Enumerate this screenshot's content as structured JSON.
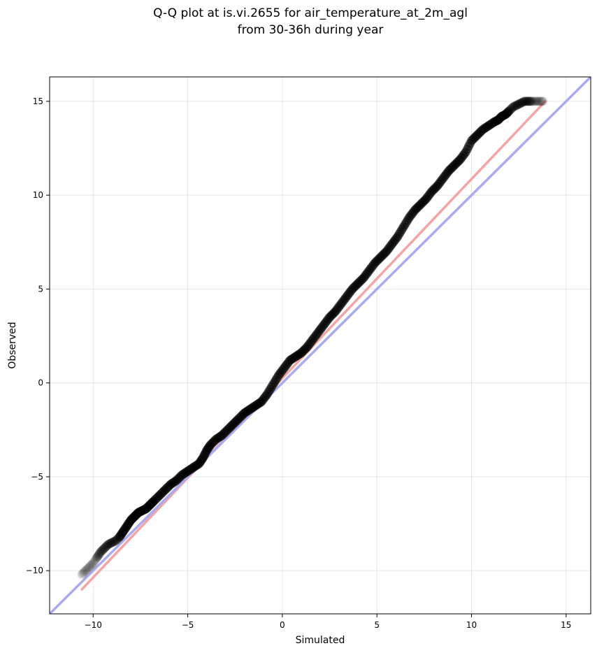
{
  "chart_data": {
    "type": "scatter",
    "title_lines": [
      "Q-Q plot at is.vi.2655 for air_temperature_at_2m_agl",
      "from 30-36h during year"
    ],
    "xlabel": "Simulated",
    "ylabel": "Observed",
    "xlim": [
      -12.3,
      16.3
    ],
    "ylim": [
      -12.3,
      16.3
    ],
    "xticks": [
      -10,
      -5,
      0,
      5,
      10,
      15
    ],
    "yticks": [
      -10,
      -5,
      0,
      5,
      10,
      15
    ],
    "xtick_labels": [
      "−10",
      "−5",
      "0",
      "5",
      "10",
      "15"
    ],
    "ytick_labels": [
      "−10",
      "−5",
      "0",
      "5",
      "10",
      "15"
    ],
    "grid": true,
    "series": [
      {
        "role": "quantile-points",
        "color": "#000000",
        "x": [
          -10.6,
          -10.4,
          -10.2,
          -10.0,
          -9.8,
          -9.6,
          -9.4,
          -9.2,
          -9.0,
          -8.8,
          -8.6,
          -8.4,
          -8.2,
          -8.0,
          -7.8,
          -7.6,
          -7.4,
          -7.2,
          -7.0,
          -6.8,
          -6.5,
          -6.2,
          -5.9,
          -5.6,
          -5.3,
          -5.0,
          -4.7,
          -4.4,
          -4.2,
          -4.0,
          -3.8,
          -3.5,
          -3.2,
          -2.9,
          -2.6,
          -2.3,
          -2.0,
          -1.7,
          -1.4,
          -1.1,
          -0.8,
          -0.5,
          -0.2,
          0.1,
          0.4,
          0.7,
          1.0,
          1.3,
          1.6,
          1.9,
          2.2,
          2.5,
          2.8,
          3.1,
          3.4,
          3.7,
          4.0,
          4.3,
          4.6,
          4.9,
          5.2,
          5.5,
          5.8,
          6.1,
          6.4,
          6.7,
          7.0,
          7.3,
          7.6,
          7.9,
          8.2,
          8.5,
          8.8,
          9.1,
          9.4,
          9.7,
          10.0,
          10.3,
          10.6,
          10.9,
          11.2,
          11.4,
          11.6,
          11.8,
          12.0,
          12.2,
          12.4,
          12.6,
          12.8,
          13.0,
          13.2,
          13.4,
          13.6,
          13.8
        ],
        "y": [
          -10.2,
          -10.0,
          -9.8,
          -9.6,
          -9.3,
          -9.0,
          -8.8,
          -8.6,
          -8.5,
          -8.4,
          -8.2,
          -7.9,
          -7.6,
          -7.3,
          -7.1,
          -6.9,
          -6.8,
          -6.7,
          -6.5,
          -6.3,
          -6.0,
          -5.7,
          -5.4,
          -5.2,
          -4.9,
          -4.7,
          -4.5,
          -4.3,
          -4.0,
          -3.6,
          -3.3,
          -3.0,
          -2.8,
          -2.5,
          -2.2,
          -1.9,
          -1.6,
          -1.4,
          -1.2,
          -1.0,
          -0.6,
          -0.1,
          0.4,
          0.8,
          1.2,
          1.4,
          1.6,
          1.9,
          2.3,
          2.7,
          3.1,
          3.5,
          3.8,
          4.2,
          4.6,
          5.0,
          5.3,
          5.6,
          6.0,
          6.4,
          6.7,
          7.0,
          7.4,
          7.8,
          8.3,
          8.8,
          9.2,
          9.5,
          9.8,
          10.2,
          10.5,
          10.9,
          11.3,
          11.6,
          11.9,
          12.3,
          12.9,
          13.2,
          13.5,
          13.7,
          13.9,
          14.0,
          14.2,
          14.3,
          14.5,
          14.7,
          14.8,
          14.9,
          15.0,
          15.0,
          15.0,
          15.0,
          15.0,
          15.0
        ]
      },
      {
        "role": "fit-line",
        "color": "#f4a4a4",
        "x": [
          -10.6,
          13.9
        ],
        "y": [
          -11.0,
          15.0
        ]
      },
      {
        "role": "one-to-one-line",
        "color": "#aaaaf0",
        "x": [
          -12.3,
          16.3
        ],
        "y": [
          -12.3,
          16.3
        ]
      }
    ]
  }
}
